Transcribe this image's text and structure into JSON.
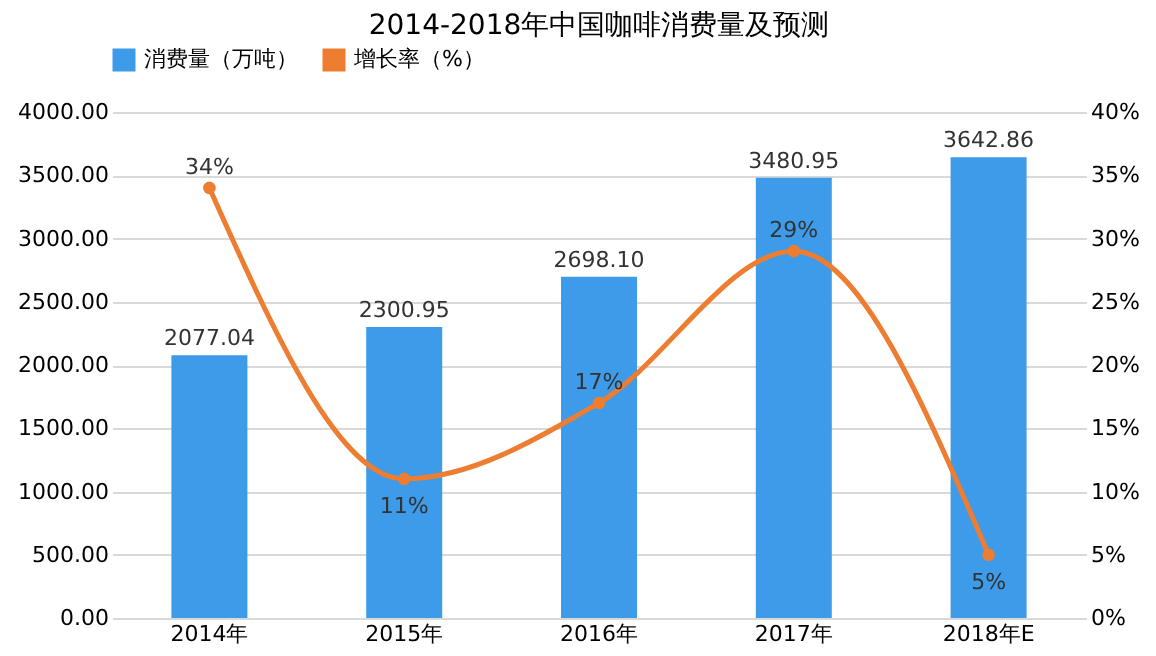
{
  "chart_data": {
    "type": "bar",
    "title": "2014-2018年中国咖啡消费量及预测",
    "categories": [
      "2014年",
      "2015年",
      "2016年",
      "2017年",
      "2018年E"
    ],
    "series": [
      {
        "name": "消费量（万吨）",
        "color": "#3d9be9",
        "values": [
          2077.04,
          2300.95,
          2698.1,
          3480.95,
          3642.86
        ],
        "value_labels": [
          "2077.04",
          "2300.95",
          "2698.10",
          "3480.95",
          "3642.86"
        ]
      },
      {
        "name": "增长率（%）",
        "type": "line",
        "axis": "y2",
        "color": "#ed7d31",
        "marker": "circle",
        "values": [
          34,
          11,
          17,
          29,
          5
        ],
        "value_labels": [
          "34%",
          "11%",
          "17%",
          "29%",
          "5%"
        ]
      }
    ],
    "ylim": [
      0,
      4000
    ],
    "yticks": [
      {
        "value": 0,
        "label": "0.00"
      },
      {
        "value": 500,
        "label": "500.00"
      },
      {
        "value": 1000,
        "label": "1000.00"
      },
      {
        "value": 1500,
        "label": "1500.00"
      },
      {
        "value": 2000,
        "label": "2000.00"
      },
      {
        "value": 2500,
        "label": "2500.00"
      },
      {
        "value": 3000,
        "label": "3000.00"
      },
      {
        "value": 3500,
        "label": "3500.00"
      },
      {
        "value": 4000,
        "label": "4000.00"
      }
    ],
    "y2lim": [
      0,
      40
    ],
    "y2ticks": [
      {
        "value": 0,
        "label": "0%"
      },
      {
        "value": 5,
        "label": "5%"
      },
      {
        "value": 10,
        "label": "10%"
      },
      {
        "value": 15,
        "label": "15%"
      },
      {
        "value": 20,
        "label": "20%"
      },
      {
        "value": 25,
        "label": "25%"
      },
      {
        "value": 30,
        "label": "30%"
      },
      {
        "value": 35,
        "label": "35%"
      },
      {
        "value": 40,
        "label": "40%"
      }
    ],
    "grid": "y",
    "legend": "top"
  }
}
